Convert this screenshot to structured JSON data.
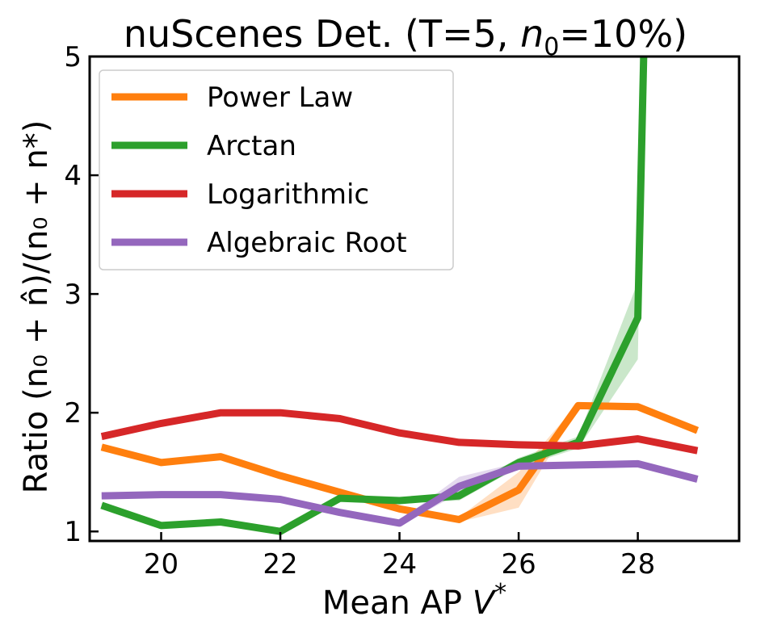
{
  "chart_data": {
    "type": "line",
    "title_main": "nuScenes Det. (T=5, ",
    "title_var": "n",
    "title_sub": "0",
    "title_tail": "=10%)",
    "xlabel_main": "Mean AP ",
    "xlabel_var": "V",
    "xlabel_sup": "*",
    "ylabel": "Ratio (n₀ + n̂)/(n₀ + n*)",
    "xlim": [
      18.8,
      29.7
    ],
    "ylim": [
      0.92,
      5.0
    ],
    "xticks": [
      20,
      22,
      24,
      26,
      28
    ],
    "yticks": [
      1,
      2,
      3,
      4,
      5
    ],
    "grid": false,
    "legend_position": "top-left",
    "series": [
      {
        "name": "Power Law",
        "color": "#ff7f0e",
        "x": [
          19,
          20,
          21,
          22,
          23,
          24,
          25,
          26,
          27,
          28,
          29
        ],
        "y": [
          1.71,
          1.58,
          1.63,
          1.47,
          1.33,
          1.19,
          1.1,
          1.35,
          2.06,
          2.05,
          1.85
        ],
        "band_low": [
          1.69,
          1.56,
          1.61,
          1.45,
          1.31,
          1.17,
          1.08,
          1.2,
          2.04,
          2.03,
          1.83
        ],
        "band_high": [
          1.73,
          1.6,
          1.65,
          1.49,
          1.35,
          1.21,
          1.12,
          1.5,
          2.08,
          2.07,
          1.87
        ]
      },
      {
        "name": "Arctan",
        "color": "#2ca02c",
        "x": [
          19,
          20,
          21,
          22,
          23,
          24,
          25,
          26,
          27,
          28,
          28.1
        ],
        "y": [
          1.22,
          1.05,
          1.08,
          1.0,
          1.28,
          1.26,
          1.3,
          1.58,
          1.75,
          2.8,
          5.05
        ],
        "band_low": [
          1.2,
          1.03,
          1.06,
          0.98,
          1.26,
          1.24,
          1.26,
          1.54,
          1.7,
          2.45,
          5.05
        ],
        "band_high": [
          1.24,
          1.07,
          1.1,
          1.02,
          1.3,
          1.28,
          1.34,
          1.62,
          1.8,
          3.1,
          5.05
        ]
      },
      {
        "name": "Logarithmic",
        "color": "#d62728",
        "x": [
          19,
          20,
          21,
          22,
          23,
          24,
          25,
          26,
          27,
          28,
          29
        ],
        "y": [
          1.8,
          1.91,
          2.0,
          2.0,
          1.95,
          1.83,
          1.75,
          1.73,
          1.72,
          1.78,
          1.68
        ],
        "band_low": [
          1.77,
          1.89,
          1.98,
          1.98,
          1.93,
          1.81,
          1.73,
          1.71,
          1.7,
          1.76,
          1.66
        ],
        "band_high": [
          1.83,
          1.93,
          2.02,
          2.02,
          1.97,
          1.85,
          1.77,
          1.75,
          1.74,
          1.8,
          1.7
        ]
      },
      {
        "name": "Algebraic Root",
        "color": "#9467bd",
        "x": [
          19,
          20,
          21,
          22,
          23,
          24,
          25,
          26,
          27,
          28,
          29
        ],
        "y": [
          1.3,
          1.31,
          1.31,
          1.27,
          1.16,
          1.07,
          1.38,
          1.55,
          1.56,
          1.57,
          1.44
        ],
        "band_low": [
          1.28,
          1.29,
          1.29,
          1.25,
          1.14,
          1.05,
          1.32,
          1.52,
          1.54,
          1.55,
          1.42
        ],
        "band_high": [
          1.32,
          1.33,
          1.33,
          1.29,
          1.18,
          1.09,
          1.46,
          1.58,
          1.58,
          1.59,
          1.46
        ]
      }
    ]
  }
}
